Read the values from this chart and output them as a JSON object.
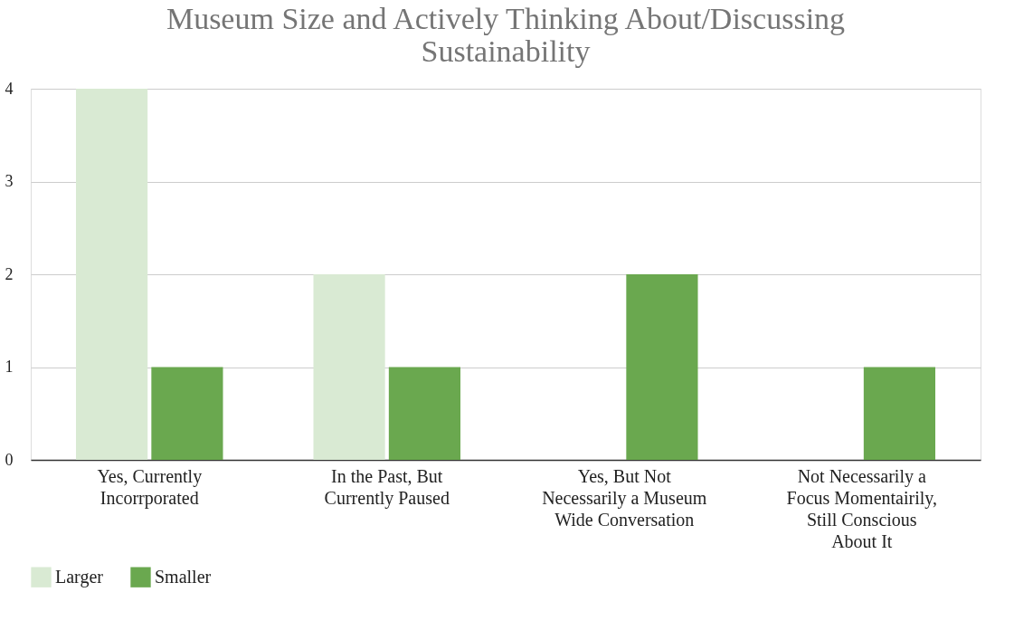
{
  "chart_data": {
    "type": "bar",
    "title": "Museum Size and Actively Thinking About/Discussing Sustainability",
    "categories": [
      "Yes, Currently Incorrporated",
      "In the Past, But Currently Paused",
      "Yes, But Not Necessarily a Museum Wide Conversation",
      "Not Necessarily a Focus Momentairily, Still Conscious About It"
    ],
    "series": [
      {
        "name": "Larger",
        "color": "#d9ead3",
        "values": [
          4,
          2,
          0,
          0
        ]
      },
      {
        "name": "Smaller",
        "color": "#6aa84f",
        "values": [
          1,
          1,
          2,
          1
        ]
      }
    ],
    "ylim": [
      0,
      4
    ],
    "yticks": [
      0,
      1,
      2,
      3,
      4
    ],
    "grid": "y",
    "legend": "bottom"
  }
}
